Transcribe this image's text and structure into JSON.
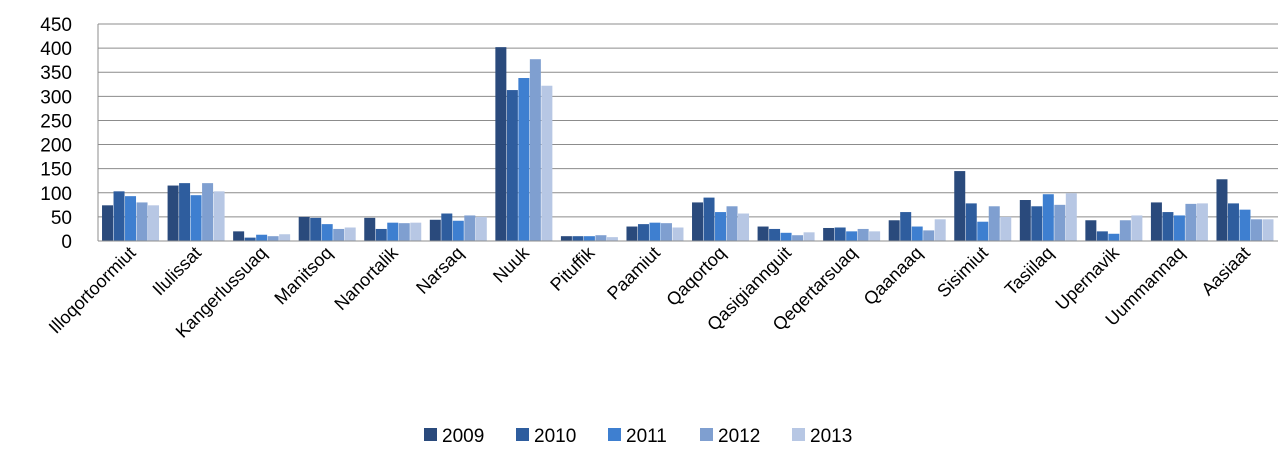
{
  "chart_data": {
    "type": "bar",
    "title": "",
    "xlabel": "",
    "ylabel": "",
    "ylim": [
      0,
      450
    ],
    "yticks": [
      0,
      50,
      100,
      150,
      200,
      250,
      300,
      350,
      400,
      450
    ],
    "grid": true,
    "legend_position": "bottom",
    "categories": [
      "Illoqortoormiut",
      "Ilulissat",
      "Kangerlussuaq",
      "Manitsoq",
      "Nanortalik",
      "Narsaq",
      "Nuuk",
      "Pituffik",
      "Paamiut",
      "Qaqortoq",
      "Qasigiannguit",
      "Qeqertarsuaq",
      "Qaanaaq",
      "Sisimiut",
      "Tasiilaq",
      "Upernavik",
      "Uummannaq",
      "Aasiaat"
    ],
    "series": [
      {
        "name": "2009",
        "color": "#2a4a7c",
        "values": [
          74,
          115,
          20,
          50,
          48,
          44,
          402,
          10,
          30,
          80,
          30,
          27,
          43,
          145,
          85,
          43,
          80,
          128
        ]
      },
      {
        "name": "2010",
        "color": "#2e5d9e",
        "values": [
          103,
          120,
          7,
          48,
          25,
          57,
          313,
          10,
          35,
          90,
          25,
          28,
          60,
          78,
          72,
          20,
          60,
          78
        ]
      },
      {
        "name": "2011",
        "color": "#3e7fd0",
        "values": [
          93,
          95,
          13,
          35,
          38,
          42,
          338,
          10,
          38,
          60,
          17,
          20,
          30,
          40,
          97,
          15,
          53,
          65
        ]
      },
      {
        "name": "2012",
        "color": "#7f9fd0",
        "values": [
          80,
          120,
          10,
          25,
          37,
          53,
          377,
          12,
          37,
          72,
          12,
          25,
          22,
          72,
          75,
          43,
          77,
          45
        ]
      },
      {
        "name": "2013",
        "color": "#b7c7e4",
        "values": [
          74,
          103,
          14,
          28,
          38,
          50,
          322,
          8,
          28,
          57,
          18,
          20,
          45,
          50,
          99,
          53,
          78,
          45
        ]
      }
    ]
  }
}
